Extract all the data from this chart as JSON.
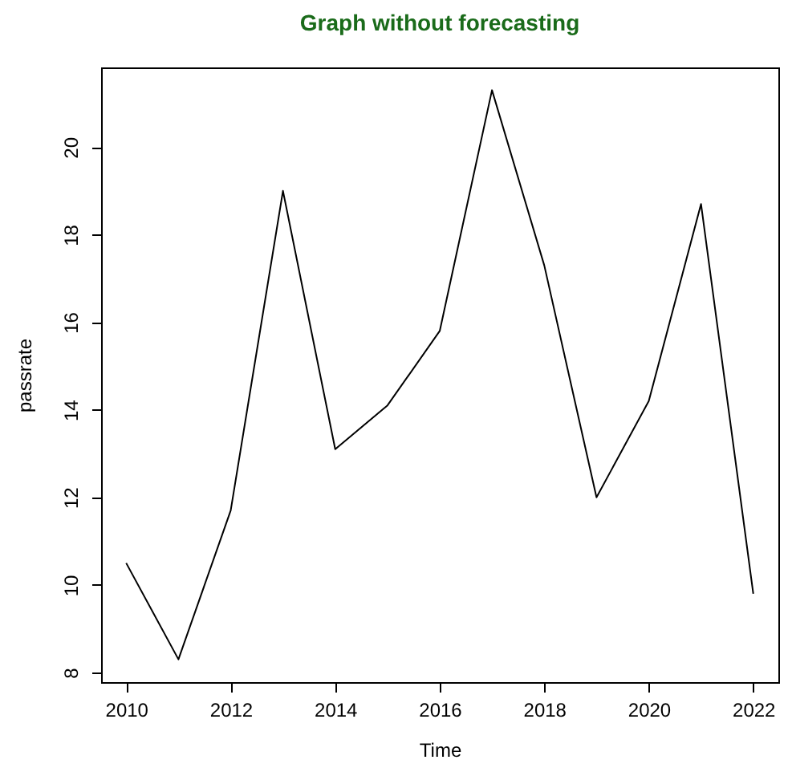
{
  "chart_data": {
    "type": "line",
    "title": "Graph without forecasting",
    "xlabel": "Time",
    "ylabel": "passrate",
    "x": [
      2010,
      2011,
      2012,
      2013,
      2014,
      2015,
      2016,
      2017,
      2018,
      2019,
      2020,
      2021,
      2022
    ],
    "series": [
      {
        "color": "#000000",
        "values": [
          10.5,
          8.3,
          11.7,
          19.0,
          13.1,
          14.1,
          15.8,
          21.3,
          17.3,
          12.0,
          14.2,
          18.7,
          9.8
        ]
      }
    ],
    "xlim": [
      2009.52,
      2022.48
    ],
    "ylim": [
      7.78,
      21.82
    ],
    "xticks": [
      2010,
      2012,
      2014,
      2016,
      2018,
      2020,
      2022
    ],
    "yticks": [
      8,
      10,
      12,
      14,
      16,
      18,
      20
    ],
    "grid": false,
    "legend": false,
    "marker": "none",
    "line_style": "solid"
  }
}
